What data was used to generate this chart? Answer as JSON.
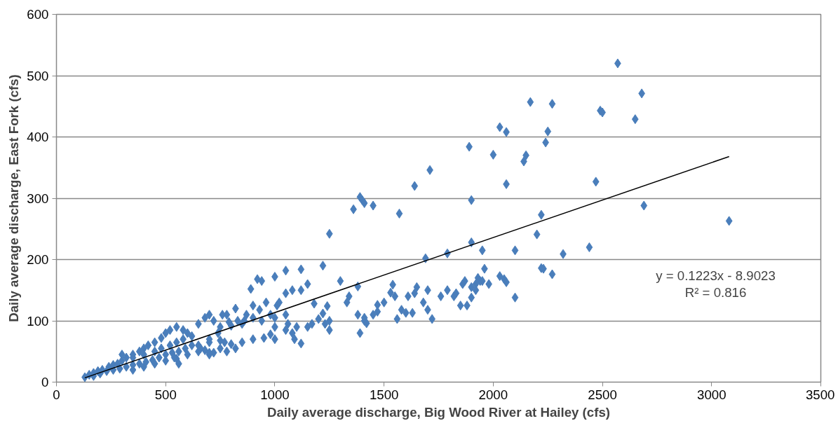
{
  "chart_data": {
    "type": "scatter",
    "xlabel": "Daily average discharge, Big Wood River at Hailey (cfs)",
    "ylabel": "Daily average discharge, East Fork (cfs)",
    "xlim": [
      0,
      3500
    ],
    "xticks": [
      0,
      500,
      1000,
      1500,
      2000,
      2500,
      3000,
      3500
    ],
    "ylim": [
      0,
      600
    ],
    "yticks": [
      0,
      100,
      200,
      300,
      400,
      500,
      600
    ],
    "grid": "y",
    "annotations": [
      "y = 0.1223x - 8.9023",
      "R² = 0.816"
    ],
    "series": [
      {
        "marker": "diamond",
        "color": "#4a7ebb",
        "x": [
          2570,
          2680,
          2650,
          2490,
          2500,
          2170,
          2270,
          2030,
          2060,
          2000,
          1890,
          2250,
          2240,
          2150,
          2140,
          1710,
          1640,
          2060,
          1390,
          1400,
          1410,
          1450,
          1360,
          1570,
          1900,
          2470,
          2690,
          3080,
          2220,
          1250,
          2200,
          1900,
          1950,
          2100,
          1690,
          1790,
          2440,
          2320,
          2220,
          2230,
          2270,
          1960,
          1920,
          1950,
          1980,
          1900,
          1870,
          2030,
          2050,
          2060,
          2100,
          1940,
          1930,
          1220,
          1120,
          1050,
          1000,
          920,
          940,
          890,
          1120,
          1080,
          1050,
          1150,
          1180,
          1240,
          1220,
          1250,
          1300,
          1340,
          1380,
          1330,
          1380,
          1410,
          1420,
          1390,
          1450,
          1470,
          1500,
          1550,
          1540,
          1530,
          1580,
          1560,
          1600,
          1610,
          1630,
          1640,
          1650,
          1680,
          1700,
          1720,
          1700,
          1760,
          1790,
          1820,
          1830,
          1850,
          1880,
          1860,
          1900,
          1920,
          1470,
          1410,
          1200,
          1120,
          1100,
          1050,
          1060,
          1000,
          980,
          950,
          1000,
          1080,
          1090,
          1150,
          1170,
          1250,
          1230,
          1000,
          980,
          1010,
          940,
          900,
          860,
          900,
          850,
          820,
          800,
          780,
          750,
          720,
          700,
          680,
          660,
          700,
          750,
          800,
          780,
          820,
          850,
          960,
          1050,
          1020,
          930,
          900,
          870,
          130,
          150,
          170,
          190,
          210,
          240,
          260,
          280,
          300,
          320,
          350,
          380,
          400,
          420,
          450,
          480,
          500,
          520,
          550,
          580,
          600,
          620,
          650,
          680,
          700,
          720,
          750,
          760,
          790,
          830,
          170,
          200,
          230,
          260,
          290,
          320,
          350,
          380,
          410,
          440,
          470,
          500,
          530,
          560,
          590,
          620,
          300,
          350,
          400,
          450,
          480,
          520,
          550,
          580,
          350,
          400,
          450,
          500,
          550,
          600,
          650,
          700,
          650,
          700,
          740,
          770,
          560,
          540
        ],
        "values": [
          520,
          471,
          429,
          443,
          440,
          457,
          454,
          416,
          408,
          371,
          384,
          409,
          391,
          370,
          360,
          346,
          320,
          323,
          302,
          297,
          292,
          288,
          282,
          275,
          297,
          327,
          288,
          263,
          273,
          242,
          241,
          228,
          215,
          215,
          202,
          210,
          220,
          209,
          186,
          185,
          176,
          185,
          160,
          165,
          160,
          155,
          165,
          173,
          168,
          163,
          138,
          165,
          170,
          190,
          184,
          182,
          172,
          168,
          165,
          152,
          150,
          150,
          145,
          160,
          128,
          124,
          112,
          100,
          165,
          140,
          156,
          130,
          110,
          100,
          96,
          80,
          110,
          126,
          130,
          140,
          159,
          146,
          118,
          103,
          113,
          140,
          113,
          145,
          155,
          130,
          150,
          103,
          118,
          140,
          150,
          140,
          145,
          125,
          125,
          160,
          138,
          150,
          115,
          105,
          103,
          63,
          90,
          85,
          95,
          90,
          78,
          72,
          70,
          80,
          70,
          90,
          95,
          85,
          95,
          105,
          110,
          125,
          100,
          105,
          100,
          70,
          65,
          55,
          62,
          50,
          55,
          48,
          45,
          52,
          55,
          65,
          68,
          92,
          110,
          120,
          95,
          130,
          110,
          130,
          118,
          125,
          110,
          8,
          12,
          15,
          18,
          20,
          25,
          28,
          30,
          35,
          40,
          45,
          50,
          55,
          60,
          65,
          72,
          80,
          85,
          90,
          85,
          80,
          75,
          95,
          105,
          110,
          100,
          90,
          110,
          98,
          100,
          10,
          14,
          18,
          20,
          22,
          25,
          28,
          30,
          33,
          36,
          40,
          45,
          48,
          50,
          55,
          60,
          45,
          40,
          45,
          50,
          55,
          60,
          65,
          70,
          20,
          25,
          30,
          35,
          38,
          45,
          50,
          48,
          60,
          70,
          80,
          65,
          30,
          40
        ]
      },
      {
        "type": "line",
        "color": "#000000",
        "x": [
          130,
          3080
        ],
        "values": [
          7,
          368
        ]
      }
    ]
  }
}
